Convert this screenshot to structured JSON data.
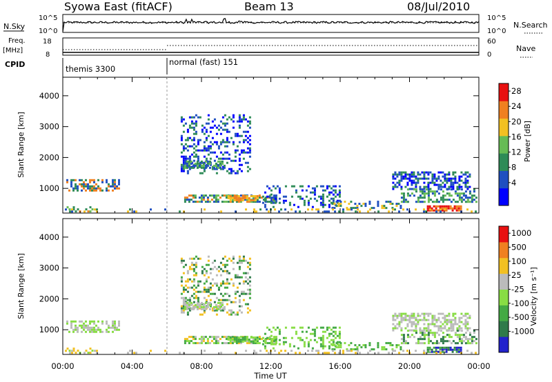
{
  "header": {
    "station": "Syowa East (fitACF)",
    "beam": "Beam 13",
    "date": "08/Jul/2010"
  },
  "top_panels": {
    "nsky_label": "N.Sky",
    "nsky_ticks": [
      "10^5",
      "10^0"
    ],
    "nsearch_ticks": [
      "10^5",
      "10^0"
    ],
    "nsearch_label": "N.Search",
    "freq_label": "Freq.",
    "freq_unit": "[MHz]",
    "freq_ticks": [
      "18",
      "8"
    ],
    "nave_ticks": [
      "60",
      "0"
    ],
    "nave_label": "Nave",
    "cpid_label": "CPID",
    "cpid_segments": [
      {
        "name": "themis 3300",
        "start_hour": 0
      },
      {
        "name": "normal (fast) 151",
        "start_hour": 6
      }
    ]
  },
  "chart_data": [
    {
      "type": "heatmap",
      "name": "power",
      "xlabel": "",
      "ylabel": "Slant Range [km]",
      "xlim_hours": [
        0,
        24
      ],
      "ylim": [
        200,
        4600
      ],
      "yticks": [
        "1000",
        "2000",
        "3000",
        "4000"
      ],
      "colorbar_label": "Power [dB]",
      "colorbar_ticks": [
        "28",
        "24",
        "20",
        "16",
        "12",
        "8",
        "4"
      ],
      "colorbar_colors": [
        "#0000ff",
        "#1f4fc0",
        "#2e8b57",
        "#66bb55",
        "#f2c022",
        "#f08020",
        "#e81010"
      ]
    },
    {
      "type": "heatmap",
      "name": "velocity",
      "xlabel": "Time UT",
      "ylabel": "Slant Range [km]",
      "xlim_hours": [
        0,
        24
      ],
      "ylim": [
        200,
        4600
      ],
      "yticks": [
        "1000",
        "2000",
        "3000",
        "4000"
      ],
      "xticks": [
        "00:00",
        "04:00",
        "08:00",
        "12:00",
        "16:00",
        "20:00",
        "00:00"
      ],
      "colorbar_label": "Velocity [m s⁻¹]",
      "colorbar_ticks": [
        "1000",
        "500",
        "100",
        "25",
        "-25",
        "-100",
        "-500",
        "-1000"
      ],
      "colorbar_colors": [
        "#2222cc",
        "#2f7a4a",
        "#44aa44",
        "#88dd44",
        "#bbbbbb",
        "#f2c022",
        "#f08020",
        "#e81010"
      ]
    }
  ]
}
